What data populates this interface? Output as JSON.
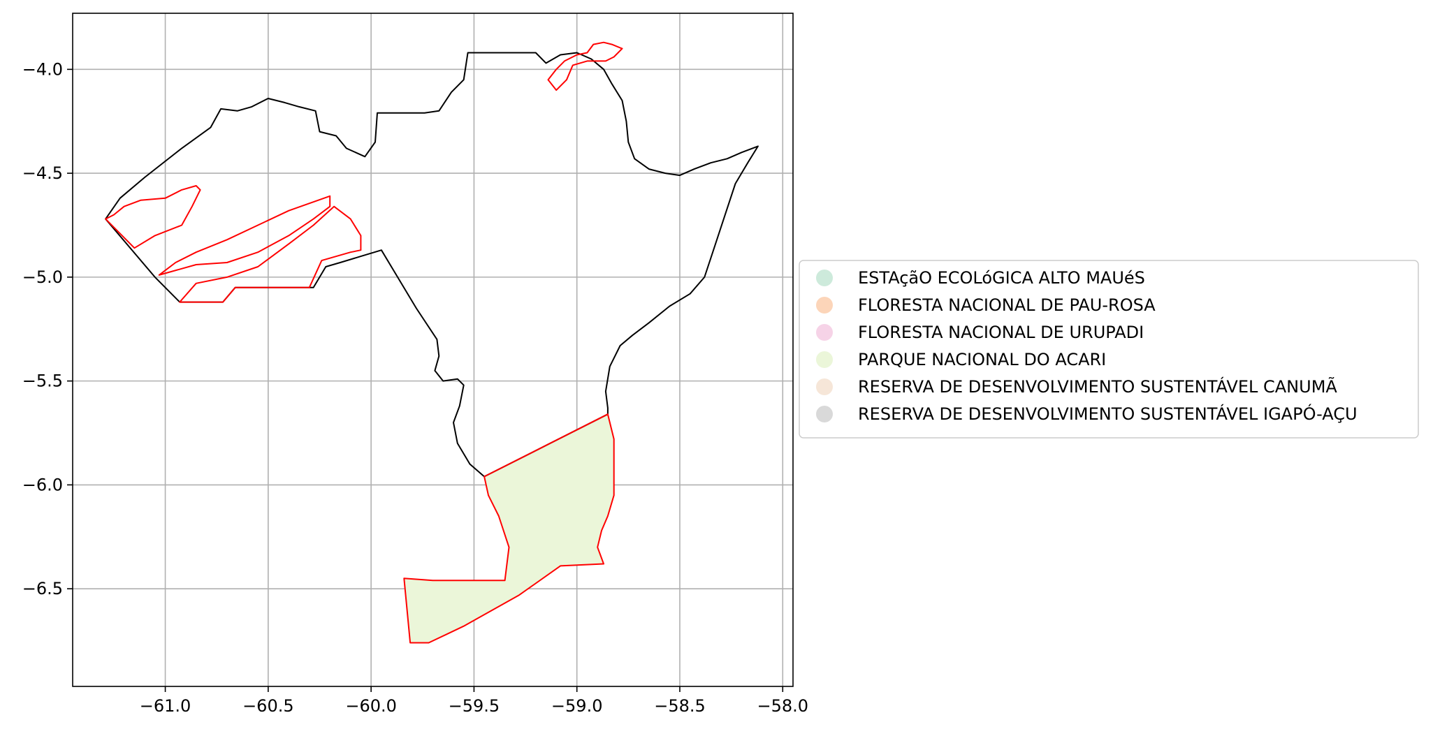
{
  "chart_data": {
    "type": "map",
    "title": "",
    "xlabel": "",
    "ylabel": "",
    "xlim": [
      -61.45,
      -57.95
    ],
    "ylim": [
      -6.97,
      -3.73
    ],
    "grid": true,
    "x_ticks": [
      {
        "value": -61.0,
        "label": "−61.0"
      },
      {
        "value": -60.5,
        "label": "−60.5"
      },
      {
        "value": -60.0,
        "label": "−60.0"
      },
      {
        "value": -59.5,
        "label": "−59.5"
      },
      {
        "value": -59.0,
        "label": "−59.0"
      },
      {
        "value": -58.5,
        "label": "−58.5"
      },
      {
        "value": -58.0,
        "label": "−58.0"
      }
    ],
    "y_ticks": [
      {
        "value": -4.0,
        "label": "−4.0"
      },
      {
        "value": -4.5,
        "label": "−4.5"
      },
      {
        "value": -5.0,
        "label": "−5.0"
      },
      {
        "value": -5.5,
        "label": "−5.5"
      },
      {
        "value": -6.0,
        "label": "−6.0"
      },
      {
        "value": -6.5,
        "label": "−6.5"
      }
    ],
    "legend_position": "right",
    "legend": [
      {
        "label": "ESTAçãO ECOLóGICA ALTO MAUéS",
        "color": "#cdeadb"
      },
      {
        "label": "FLORESTA NACIONAL DE PAU-ROSA",
        "color": "#fcd5b9"
      },
      {
        "label": "FLORESTA NACIONAL DE URUPADI",
        "color": "#f6d3e7"
      },
      {
        "label": "PARQUE NACIONAL DO ACARI",
        "color": "#ebf6d9"
      },
      {
        "label": "RESERVA DE DESENVOLVIMENTO SUSTENTÁVEL CANUMÃ",
        "color": "#f6e6d8"
      },
      {
        "label": "RESERVA DE DESENVOLVIMENTO SUSTENTÁVEL IGAPÓ-AÇU",
        "color": "#d9d9d9"
      }
    ],
    "municipality_outline": {
      "stroke": "#000000",
      "points": [
        [
          -61.29,
          -4.72
        ],
        [
          -61.22,
          -4.62
        ],
        [
          -61.1,
          -4.52
        ],
        [
          -60.92,
          -4.38
        ],
        [
          -60.78,
          -4.28
        ],
        [
          -60.73,
          -4.19
        ],
        [
          -60.65,
          -4.2
        ],
        [
          -60.58,
          -4.18
        ],
        [
          -60.5,
          -4.14
        ],
        [
          -60.42,
          -4.16
        ],
        [
          -60.35,
          -4.18
        ],
        [
          -60.27,
          -4.2
        ],
        [
          -60.25,
          -4.3
        ],
        [
          -60.17,
          -4.32
        ],
        [
          -60.12,
          -4.38
        ],
        [
          -60.03,
          -4.42
        ],
        [
          -59.98,
          -4.35
        ],
        [
          -59.97,
          -4.21
        ],
        [
          -59.82,
          -4.21
        ],
        [
          -59.74,
          -4.21
        ],
        [
          -59.67,
          -4.2
        ],
        [
          -59.61,
          -4.11
        ],
        [
          -59.55,
          -4.05
        ],
        [
          -59.53,
          -3.92
        ],
        [
          -59.4,
          -3.92
        ],
        [
          -59.2,
          -3.92
        ],
        [
          -59.15,
          -3.97
        ],
        [
          -59.08,
          -3.93
        ],
        [
          -59.0,
          -3.92
        ],
        [
          -58.93,
          -3.95
        ],
        [
          -58.87,
          -4.0
        ],
        [
          -58.83,
          -4.07
        ],
        [
          -58.78,
          -4.15
        ],
        [
          -58.76,
          -4.25
        ],
        [
          -58.75,
          -4.35
        ],
        [
          -58.72,
          -4.43
        ],
        [
          -58.65,
          -4.48
        ],
        [
          -58.57,
          -4.5
        ],
        [
          -58.5,
          -4.51
        ],
        [
          -58.43,
          -4.48
        ],
        [
          -58.35,
          -4.45
        ],
        [
          -58.27,
          -4.43
        ],
        [
          -58.2,
          -4.4
        ],
        [
          -58.12,
          -4.37
        ],
        [
          -58.17,
          -4.45
        ],
        [
          -58.23,
          -4.55
        ],
        [
          -58.28,
          -4.7
        ],
        [
          -58.33,
          -4.85
        ],
        [
          -58.38,
          -5.0
        ],
        [
          -58.45,
          -5.08
        ],
        [
          -58.55,
          -5.14
        ],
        [
          -58.65,
          -5.22
        ],
        [
          -58.73,
          -5.28
        ],
        [
          -58.79,
          -5.33
        ],
        [
          -58.84,
          -5.43
        ],
        [
          -58.86,
          -5.55
        ],
        [
          -58.85,
          -5.63
        ],
        [
          -58.85,
          -5.66
        ],
        [
          -59.45,
          -5.96
        ],
        [
          -59.52,
          -5.9
        ],
        [
          -59.58,
          -5.8
        ],
        [
          -59.6,
          -5.7
        ],
        [
          -59.57,
          -5.62
        ],
        [
          -59.55,
          -5.52
        ],
        [
          -59.58,
          -5.49
        ],
        [
          -59.65,
          -5.5
        ],
        [
          -59.69,
          -5.45
        ],
        [
          -59.67,
          -5.38
        ],
        [
          -59.68,
          -5.3
        ],
        [
          -59.78,
          -5.15
        ],
        [
          -59.95,
          -4.87
        ],
        [
          -60.05,
          -4.9
        ],
        [
          -60.15,
          -4.93
        ],
        [
          -60.22,
          -4.95
        ],
        [
          -60.28,
          -5.05
        ],
        [
          -60.5,
          -5.05
        ],
        [
          -60.66,
          -5.05
        ],
        [
          -60.72,
          -5.12
        ],
        [
          -60.93,
          -5.12
        ],
        [
          -61.05,
          -5.0
        ],
        [
          -61.29,
          -4.72
        ]
      ]
    },
    "reserve_outlines": [
      {
        "name": "northern strip",
        "stroke": "#ff0000",
        "points": [
          [
            -59.1,
            -4.1
          ],
          [
            -59.05,
            -4.05
          ],
          [
            -59.02,
            -3.98
          ],
          [
            -58.95,
            -3.96
          ],
          [
            -58.86,
            -3.96
          ],
          [
            -58.82,
            -3.94
          ],
          [
            -58.78,
            -3.9
          ],
          [
            -58.83,
            -3.88
          ],
          [
            -58.87,
            -3.87
          ],
          [
            -58.92,
            -3.88
          ],
          [
            -58.95,
            -3.92
          ],
          [
            -59.0,
            -3.93
          ],
          [
            -59.06,
            -3.96
          ],
          [
            -59.1,
            -4.0
          ],
          [
            -59.14,
            -4.05
          ],
          [
            -59.1,
            -4.1
          ]
        ]
      },
      {
        "name": "west upper",
        "stroke": "#ff0000",
        "points": [
          [
            -61.29,
            -4.72
          ],
          [
            -61.25,
            -4.7
          ],
          [
            -61.2,
            -4.66
          ],
          [
            -61.12,
            -4.63
          ],
          [
            -61.0,
            -4.62
          ],
          [
            -60.92,
            -4.58
          ],
          [
            -60.85,
            -4.56
          ],
          [
            -60.83,
            -4.58
          ],
          [
            -60.87,
            -4.66
          ],
          [
            -60.92,
            -4.75
          ],
          [
            -61.05,
            -4.8
          ],
          [
            -61.15,
            -4.86
          ],
          [
            -61.29,
            -4.72
          ]
        ]
      },
      {
        "name": "west middle",
        "stroke": "#ff0000",
        "points": [
          [
            -61.03,
            -4.99
          ],
          [
            -60.95,
            -4.93
          ],
          [
            -60.85,
            -4.88
          ],
          [
            -60.7,
            -4.82
          ],
          [
            -60.55,
            -4.75
          ],
          [
            -60.4,
            -4.68
          ],
          [
            -60.2,
            -4.61
          ],
          [
            -60.2,
            -4.66
          ],
          [
            -60.28,
            -4.72
          ],
          [
            -60.4,
            -4.8
          ],
          [
            -60.55,
            -4.88
          ],
          [
            -60.7,
            -4.93
          ],
          [
            -60.85,
            -4.94
          ],
          [
            -61.03,
            -4.99
          ]
        ]
      },
      {
        "name": "west lower",
        "stroke": "#ff0000",
        "points": [
          [
            -60.93,
            -5.12
          ],
          [
            -60.72,
            -5.12
          ],
          [
            -60.66,
            -5.05
          ],
          [
            -60.5,
            -5.05
          ],
          [
            -60.3,
            -5.05
          ],
          [
            -60.24,
            -4.92
          ],
          [
            -60.1,
            -4.88
          ],
          [
            -60.05,
            -4.87
          ],
          [
            -60.05,
            -4.8
          ],
          [
            -60.1,
            -4.72
          ],
          [
            -60.18,
            -4.66
          ],
          [
            -60.28,
            -4.75
          ],
          [
            -60.4,
            -4.84
          ],
          [
            -60.55,
            -4.95
          ],
          [
            -60.7,
            -5.0
          ],
          [
            -60.85,
            -5.03
          ],
          [
            -60.93,
            -5.12
          ]
        ]
      },
      {
        "name": "southern reserve",
        "stroke": "#ff0000",
        "points": [
          [
            -59.45,
            -5.96
          ],
          [
            -58.85,
            -5.66
          ],
          [
            -58.82,
            -5.78
          ],
          [
            -58.82,
            -5.9
          ],
          [
            -58.82,
            -6.05
          ],
          [
            -58.85,
            -6.15
          ],
          [
            -58.88,
            -6.22
          ],
          [
            -58.9,
            -6.3
          ],
          [
            -58.87,
            -6.38
          ],
          [
            -59.08,
            -6.39
          ],
          [
            -59.28,
            -6.53
          ],
          [
            -59.55,
            -6.68
          ],
          [
            -59.72,
            -6.76
          ],
          [
            -59.81,
            -6.76
          ],
          [
            -59.84,
            -6.45
          ],
          [
            -59.7,
            -6.46
          ],
          [
            -59.35,
            -6.46
          ],
          [
            -59.33,
            -6.3
          ],
          [
            -59.38,
            -6.15
          ],
          [
            -59.43,
            -6.05
          ],
          [
            -59.45,
            -5.96
          ]
        ]
      }
    ],
    "filled_area": {
      "name": "PARQUE NACIONAL DO ACARI",
      "fill": "#ebf6d9",
      "points": [
        [
          -59.45,
          -5.96
        ],
        [
          -58.85,
          -5.66
        ],
        [
          -58.82,
          -5.78
        ],
        [
          -58.82,
          -5.9
        ],
        [
          -58.82,
          -6.05
        ],
        [
          -58.85,
          -6.15
        ],
        [
          -58.88,
          -6.22
        ],
        [
          -58.9,
          -6.3
        ],
        [
          -58.87,
          -6.38
        ],
        [
          -59.08,
          -6.39
        ],
        [
          -59.28,
          -6.53
        ],
        [
          -59.55,
          -6.68
        ],
        [
          -59.72,
          -6.76
        ],
        [
          -59.81,
          -6.76
        ],
        [
          -59.84,
          -6.45
        ],
        [
          -59.7,
          -6.46
        ],
        [
          -59.35,
          -6.46
        ],
        [
          -59.33,
          -6.3
        ],
        [
          -59.38,
          -6.15
        ],
        [
          -59.43,
          -6.05
        ],
        [
          -59.45,
          -5.96
        ]
      ]
    }
  }
}
